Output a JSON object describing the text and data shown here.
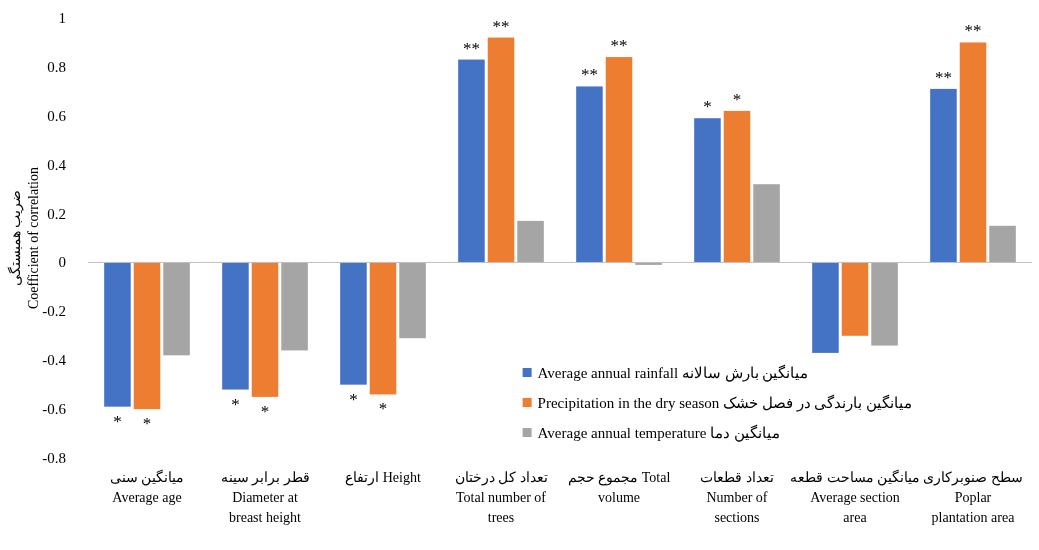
{
  "chart_data": {
    "type": "bar",
    "ylabel": "ضریب همبستگی\nCoefficient of correlation",
    "categories": [
      "میانگین سنی\nAverage age",
      "قطر برابر سینه\nDiameter at\nbreast height",
      "ارتفاع Height",
      "تعداد کل درختان\nTotal number of\ntrees",
      "مجموع حجم Total\nvolume",
      "تعداد قطعات\nNumber of\nsections",
      "میانگین مساحت قطعه\nAverage section\narea",
      "سطح صنوبرکاری\nPoplar\nplantation area"
    ],
    "series": [
      {
        "name": "Average annual rainfall میانگین بارش سالانه",
        "color": "#4472c4",
        "values": [
          -0.59,
          -0.52,
          -0.5,
          0.83,
          0.72,
          0.59,
          -0.37,
          0.71
        ],
        "value_labels": [
          "*",
          "*",
          "*",
          "**",
          "**",
          "*",
          null,
          "**"
        ]
      },
      {
        "name": "Precipitation in the dry season میانگین بارندگی در فصل خشک",
        "color": "#ed7d31",
        "values": [
          -0.6,
          -0.55,
          -0.54,
          0.92,
          0.84,
          0.62,
          -0.3,
          0.9
        ],
        "value_labels": [
          "*",
          "*",
          "*",
          "**",
          "**",
          "*",
          null,
          "**"
        ]
      },
      {
        "name": "Average annual temperature میانگین دما",
        "color": "#a5a5a5",
        "values": [
          -0.38,
          -0.36,
          -0.31,
          0.17,
          -0.01,
          0.32,
          -0.34,
          0.15
        ]
      }
    ],
    "ylim": [
      -0.8,
      1
    ],
    "yticks": [
      -0.8,
      -0.6,
      -0.4,
      -0.2,
      0,
      0.2,
      0.4,
      0.6,
      0.8,
      1
    ],
    "legend": "bottom right"
  }
}
